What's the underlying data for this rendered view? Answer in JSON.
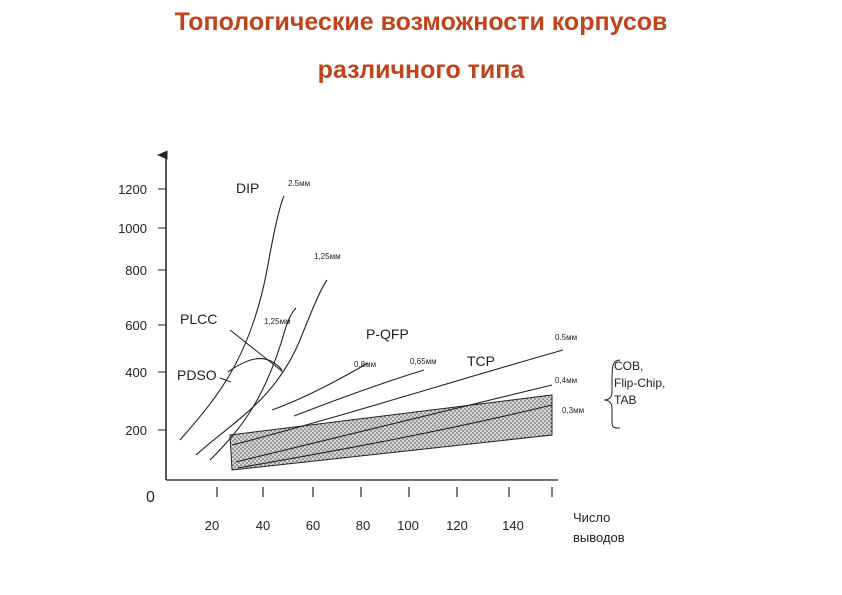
{
  "title_line1": "Топологические возможности корпусов",
  "title_line2": "различного типа",
  "colors": {
    "title": "#c0431a",
    "axis": "#222222",
    "band_fill": "#c8c8c8"
  },
  "chart_data": {
    "type": "line",
    "xlabel": "Число выводов",
    "ylabel": "",
    "x_ticks": [
      "20",
      "40",
      "60",
      "80",
      "100",
      "120",
      "140"
    ],
    "y_ticks": [
      "200",
      "400",
      "600",
      "800",
      "1000",
      "1200"
    ],
    "origin_label": "0",
    "xlim": [
      0,
      160
    ],
    "ylim": [
      0,
      1400
    ],
    "series": [
      {
        "name": "DIP",
        "pitch": "2,5мм",
        "x": [
          5,
          15,
          30,
          45,
          50
        ],
        "y": [
          100,
          250,
          500,
          950,
          1220
        ]
      },
      {
        "name": "PLCC",
        "pitch": "1,25мм",
        "x": [
          8,
          25,
          40,
          55,
          67
        ],
        "y": [
          80,
          200,
          420,
          650,
          920
        ]
      },
      {
        "name": "PDSO",
        "pitch": "1,25мм",
        "x": [
          5,
          20,
          35,
          50,
          55
        ],
        "y": [
          70,
          200,
          400,
          620,
          700
        ]
      },
      {
        "name": "P-QFP",
        "pitch": "0,8мм",
        "x": [
          40,
          60,
          80
        ],
        "y": [
          350,
          450,
          580
        ]
      },
      {
        "name": "P-QFP",
        "pitch": "0,65мм",
        "x": [
          50,
          80,
          100
        ],
        "y": [
          320,
          420,
          520
        ]
      },
      {
        "name": "TCP",
        "pitch": "0.5мм",
        "x": [
          28,
          80,
          150
        ],
        "y": [
          120,
          280,
          580
        ]
      },
      {
        "name": "TCP",
        "pitch": "0,4мм",
        "x": [
          28,
          80,
          150
        ],
        "y": [
          80,
          200,
          400
        ]
      },
      {
        "name": "TCP",
        "pitch": "0,3мм",
        "x": [
          28,
          80,
          150
        ],
        "y": [
          50,
          150,
          300
        ]
      }
    ],
    "band": {
      "label": "COB, Flip-Chip, TAB",
      "x": [
        25,
        150
      ],
      "y_low": [
        -10,
        130
      ],
      "y_high": [
        150,
        300
      ]
    },
    "labels": {
      "dip": "DIP",
      "plcc": "PLCC",
      "pdso": "PDSO",
      "pqfp": "P-QFP",
      "tcp": "TCP",
      "pitch_dip": "2.5мм",
      "pitch_dip2": "1,25мм",
      "pitch_plcc": "1,25мм",
      "pitch_08": "0,8мм",
      "pitch_065": "0,65мм",
      "pitch_05": "0.5мм",
      "pitch_04": "0,4мм",
      "pitch_03": "0,3мм",
      "band1": "COB,",
      "band2": "Flip-Chip,",
      "band3": "TAB",
      "xlabel1": "Число",
      "xlabel2": "выводов"
    }
  }
}
